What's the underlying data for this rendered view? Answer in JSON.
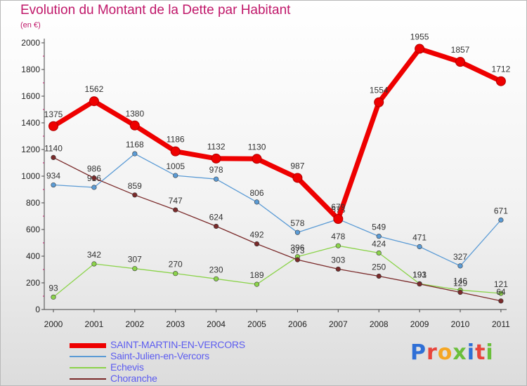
{
  "chart_data": {
    "type": "line",
    "title": "Evolution du Montant de la Dette par Habitant",
    "subtitle": "(en €)",
    "xlabel": "",
    "ylabel": "",
    "ylim": [
      0,
      2000
    ],
    "yticks": [
      0,
      200,
      400,
      600,
      800,
      1000,
      1200,
      1400,
      1600,
      1800,
      2000
    ],
    "grid": false,
    "legend_position": "bottom-left",
    "x": [
      "2000",
      "2001",
      "2002",
      "2003",
      "2004",
      "2005",
      "2006",
      "2007",
      "2008",
      "2009",
      "2010",
      "2011"
    ],
    "series": [
      {
        "name": "SAINT-MARTIN-EN-VERCORS",
        "color": "#ee0000",
        "values": [
          1375,
          1562,
          1380,
          1186,
          1132,
          1130,
          987,
          679,
          1554,
          1955,
          1857,
          1712
        ]
      },
      {
        "name": "Saint-Julien-en-Vercors",
        "color": "#5b9bd5",
        "values": [
          934,
          916,
          1168,
          1005,
          978,
          806,
          578,
          678,
          549,
          471,
          327,
          671
        ]
      },
      {
        "name": "Echevis",
        "color": "#8bd34a",
        "values": [
          93,
          342,
          307,
          270,
          230,
          189,
          396,
          478,
          424,
          193,
          146,
          121
        ]
      },
      {
        "name": "Choranche",
        "color": "#7a2a2a",
        "values": [
          1140,
          986,
          859,
          747,
          624,
          492,
          373,
          303,
          250,
          191,
          129,
          64
        ]
      }
    ]
  },
  "brand": {
    "letters": [
      "P",
      "r",
      "o",
      "x",
      "i",
      "t",
      "i"
    ],
    "colors": [
      "#2f6fd6",
      "#e8453c",
      "#f5a623",
      "#6abf3b",
      "#2f6fd6",
      "#e8453c",
      "#6abf3b"
    ]
  }
}
